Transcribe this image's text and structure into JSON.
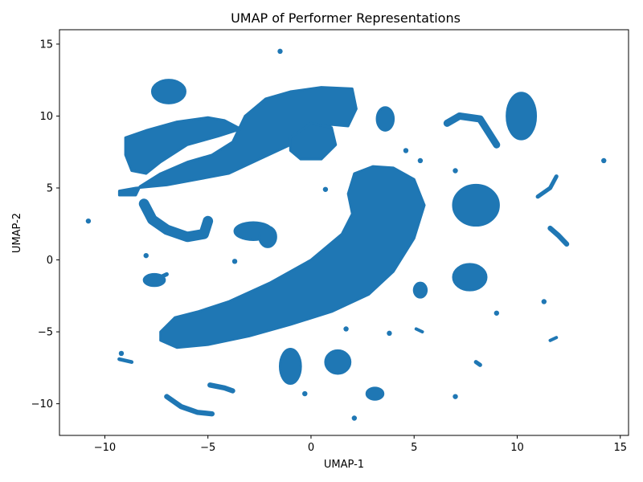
{
  "chart_data": {
    "type": "scatter",
    "title": "UMAP of Performer Representations",
    "xlabel": "UMAP-1",
    "ylabel": "UMAP-2",
    "xlim": [
      -12.2,
      15.4
    ],
    "ylim": [
      -12.2,
      16.0
    ],
    "xticks": [
      -10,
      -5,
      0,
      5,
      10,
      15
    ],
    "xtick_labels": [
      "−10",
      "−5",
      "0",
      "5",
      "10",
      "15"
    ],
    "yticks": [
      -10,
      -5,
      0,
      5,
      10,
      15
    ],
    "ytick_labels": [
      "−10",
      "−5",
      "0",
      "5",
      "10",
      "15"
    ],
    "grid": false,
    "legend": "none",
    "marker_color": "#1f77b4",
    "clusters": [
      {
        "name": "main-crescent",
        "kind": "polygon",
        "points": [
          [
            -7.3,
            -5.0
          ],
          [
            -6.6,
            -4.0
          ],
          [
            -5.5,
            -3.6
          ],
          [
            -4.0,
            -2.9
          ],
          [
            -2.0,
            -1.6
          ],
          [
            0.0,
            0.0
          ],
          [
            1.5,
            1.8
          ],
          [
            2.0,
            3.2
          ],
          [
            1.8,
            4.6
          ],
          [
            2.1,
            6.0
          ],
          [
            3.0,
            6.5
          ],
          [
            4.0,
            6.4
          ],
          [
            5.0,
            5.6
          ],
          [
            5.5,
            3.8
          ],
          [
            5.0,
            1.5
          ],
          [
            4.0,
            -0.8
          ],
          [
            2.8,
            -2.4
          ],
          [
            1.0,
            -3.6
          ],
          [
            -1.0,
            -4.5
          ],
          [
            -3.0,
            -5.3
          ],
          [
            -5.0,
            -5.9
          ],
          [
            -6.5,
            -6.1
          ],
          [
            -7.3,
            -5.6
          ]
        ]
      },
      {
        "name": "upper-wedge-band",
        "kind": "polygon",
        "points": [
          [
            -9.3,
            4.8
          ],
          [
            -8.5,
            5.0
          ],
          [
            -7.0,
            5.2
          ],
          [
            -5.5,
            5.6
          ],
          [
            -4.0,
            6.0
          ],
          [
            -2.5,
            7.0
          ],
          [
            -1.0,
            8.0
          ],
          [
            0.0,
            8.9
          ],
          [
            1.0,
            9.4
          ],
          [
            1.8,
            9.3
          ],
          [
            2.2,
            10.5
          ],
          [
            2.0,
            11.9
          ],
          [
            0.5,
            12.0
          ],
          [
            -1.0,
            11.7
          ],
          [
            -2.2,
            11.2
          ],
          [
            -3.2,
            10.0
          ],
          [
            -3.8,
            8.2
          ],
          [
            -4.8,
            7.3
          ],
          [
            -6.0,
            6.8
          ],
          [
            -7.3,
            6.0
          ],
          [
            -8.3,
            5.1
          ],
          [
            -8.5,
            4.5
          ],
          [
            -9.3,
            4.5
          ]
        ]
      },
      {
        "name": "left-arm",
        "kind": "polygon",
        "points": [
          [
            -9.0,
            8.5
          ],
          [
            -8.0,
            9.0
          ],
          [
            -6.5,
            9.6
          ],
          [
            -5.0,
            9.9
          ],
          [
            -4.2,
            9.7
          ],
          [
            -3.4,
            9.1
          ],
          [
            -4.5,
            8.6
          ],
          [
            -6.0,
            8.0
          ],
          [
            -7.3,
            6.8
          ],
          [
            -8.0,
            6.0
          ],
          [
            -8.7,
            6.2
          ],
          [
            -9.0,
            7.3
          ]
        ]
      },
      {
        "name": "blob-center-right",
        "kind": "polygon",
        "points": [
          [
            -1.0,
            8.5
          ],
          [
            0.0,
            9.5
          ],
          [
            1.0,
            9.2
          ],
          [
            1.2,
            8.0
          ],
          [
            0.5,
            7.0
          ],
          [
            -0.5,
            7.0
          ],
          [
            -1.0,
            7.6
          ]
        ]
      },
      {
        "name": "blob-upper-left",
        "kind": "ellipse",
        "cx": -6.9,
        "cy": 11.7,
        "rx": 0.8,
        "ry": 0.8
      },
      {
        "name": "blob-mid-left",
        "kind": "ellipse",
        "cx": -2.8,
        "cy": 2.0,
        "rx": 0.9,
        "ry": 0.6
      },
      {
        "name": "blob-mid-left-2",
        "kind": "ellipse",
        "cx": -2.1,
        "cy": 1.6,
        "rx": 0.4,
        "ry": 0.7
      },
      {
        "name": "blob-right",
        "kind": "ellipse",
        "cx": 8.0,
        "cy": 3.8,
        "rx": 1.1,
        "ry": 1.4
      },
      {
        "name": "blob-right-lower",
        "kind": "ellipse",
        "cx": 7.7,
        "cy": -1.2,
        "rx": 0.8,
        "ry": 0.9
      },
      {
        "name": "blob-top-right",
        "kind": "ellipse",
        "cx": 10.2,
        "cy": 10.0,
        "rx": 0.7,
        "ry": 1.6
      },
      {
        "name": "blob-bottom-1",
        "kind": "ellipse",
        "cx": -1.0,
        "cy": -7.4,
        "rx": 0.5,
        "ry": 1.2
      },
      {
        "name": "blob-bottom-2",
        "kind": "ellipse",
        "cx": 1.3,
        "cy": -7.1,
        "rx": 0.6,
        "ry": 0.8
      },
      {
        "name": "blob-col-top",
        "kind": "ellipse",
        "cx": 3.6,
        "cy": 9.8,
        "rx": 0.4,
        "ry": 0.8
      },
      {
        "name": "blob-small-left",
        "kind": "ellipse",
        "cx": -7.6,
        "cy": -1.4,
        "rx": 0.5,
        "ry": 0.4
      },
      {
        "name": "blob-53",
        "kind": "ellipse",
        "cx": 5.3,
        "cy": -2.1,
        "rx": 0.3,
        "ry": 0.5
      },
      {
        "name": "blob-22-9",
        "kind": "ellipse",
        "cx": 3.1,
        "cy": -9.3,
        "rx": 0.4,
        "ry": 0.4
      }
    ],
    "curves": [
      {
        "name": "left-hook",
        "width": 0.5,
        "points": [
          [
            -8.1,
            3.9
          ],
          [
            -7.7,
            2.8
          ],
          [
            -7.0,
            2.1
          ],
          [
            -6.0,
            1.6
          ],
          [
            -5.2,
            1.8
          ],
          [
            -5.0,
            2.7
          ]
        ]
      },
      {
        "name": "lower-arc",
        "width": 0.25,
        "points": [
          [
            -7.0,
            -9.5
          ],
          [
            -6.3,
            -10.2
          ],
          [
            -5.5,
            -10.6
          ],
          [
            -4.8,
            -10.7
          ]
        ]
      },
      {
        "name": "right-arc",
        "width": 0.35,
        "points": [
          [
            6.6,
            9.5
          ],
          [
            7.2,
            10.0
          ],
          [
            8.2,
            9.8
          ],
          [
            9.0,
            8.0
          ]
        ]
      },
      {
        "name": "far-right-diag",
        "width": 0.2,
        "points": [
          [
            11.0,
            4.4
          ],
          [
            11.6,
            5.0
          ],
          [
            11.9,
            5.8
          ]
        ]
      },
      {
        "name": "far-right-diag-2",
        "width": 0.25,
        "points": [
          [
            11.6,
            2.2
          ],
          [
            12.0,
            1.7
          ],
          [
            12.4,
            1.1
          ]
        ]
      },
      {
        "name": "small-diag-left",
        "width": 0.2,
        "points": [
          [
            -7.9,
            -1.6
          ],
          [
            -7.0,
            -1.0
          ]
        ]
      },
      {
        "name": "arc-under-hook",
        "width": 0.25,
        "points": [
          [
            -4.9,
            -8.7
          ],
          [
            -4.2,
            -8.9
          ],
          [
            -3.8,
            -9.1
          ]
        ]
      },
      {
        "name": "small-low-right",
        "width": 0.15,
        "points": [
          [
            5.1,
            -4.8
          ],
          [
            5.4,
            -5.0
          ]
        ]
      },
      {
        "name": "left-small-stick",
        "width": 0.18,
        "points": [
          [
            -9.3,
            -6.9
          ],
          [
            -8.7,
            -7.1
          ]
        ]
      },
      {
        "name": "far-right-small",
        "width": 0.15,
        "points": [
          [
            11.6,
            -5.6
          ],
          [
            11.9,
            -5.4
          ]
        ]
      },
      {
        "name": "mini-top-right",
        "width": 0.2,
        "points": [
          [
            8.0,
            -7.1
          ],
          [
            8.2,
            -7.3
          ]
        ]
      }
    ],
    "dots": [
      [
        -1.5,
        14.5
      ],
      [
        -10.8,
        2.7
      ],
      [
        14.2,
        6.9
      ],
      [
        5.3,
        6.9
      ],
      [
        7.0,
        6.2
      ],
      [
        4.6,
        7.6
      ],
      [
        0.7,
        4.9
      ],
      [
        -8.0,
        0.3
      ],
      [
        -3.7,
        -0.1
      ],
      [
        1.7,
        -4.8
      ],
      [
        3.8,
        -5.1
      ],
      [
        9.0,
        -3.7
      ],
      [
        11.3,
        -2.9
      ],
      [
        -0.3,
        -9.3
      ],
      [
        2.1,
        -11.0
      ],
      [
        7.0,
        -9.5
      ],
      [
        -9.2,
        -6.5
      ]
    ]
  }
}
